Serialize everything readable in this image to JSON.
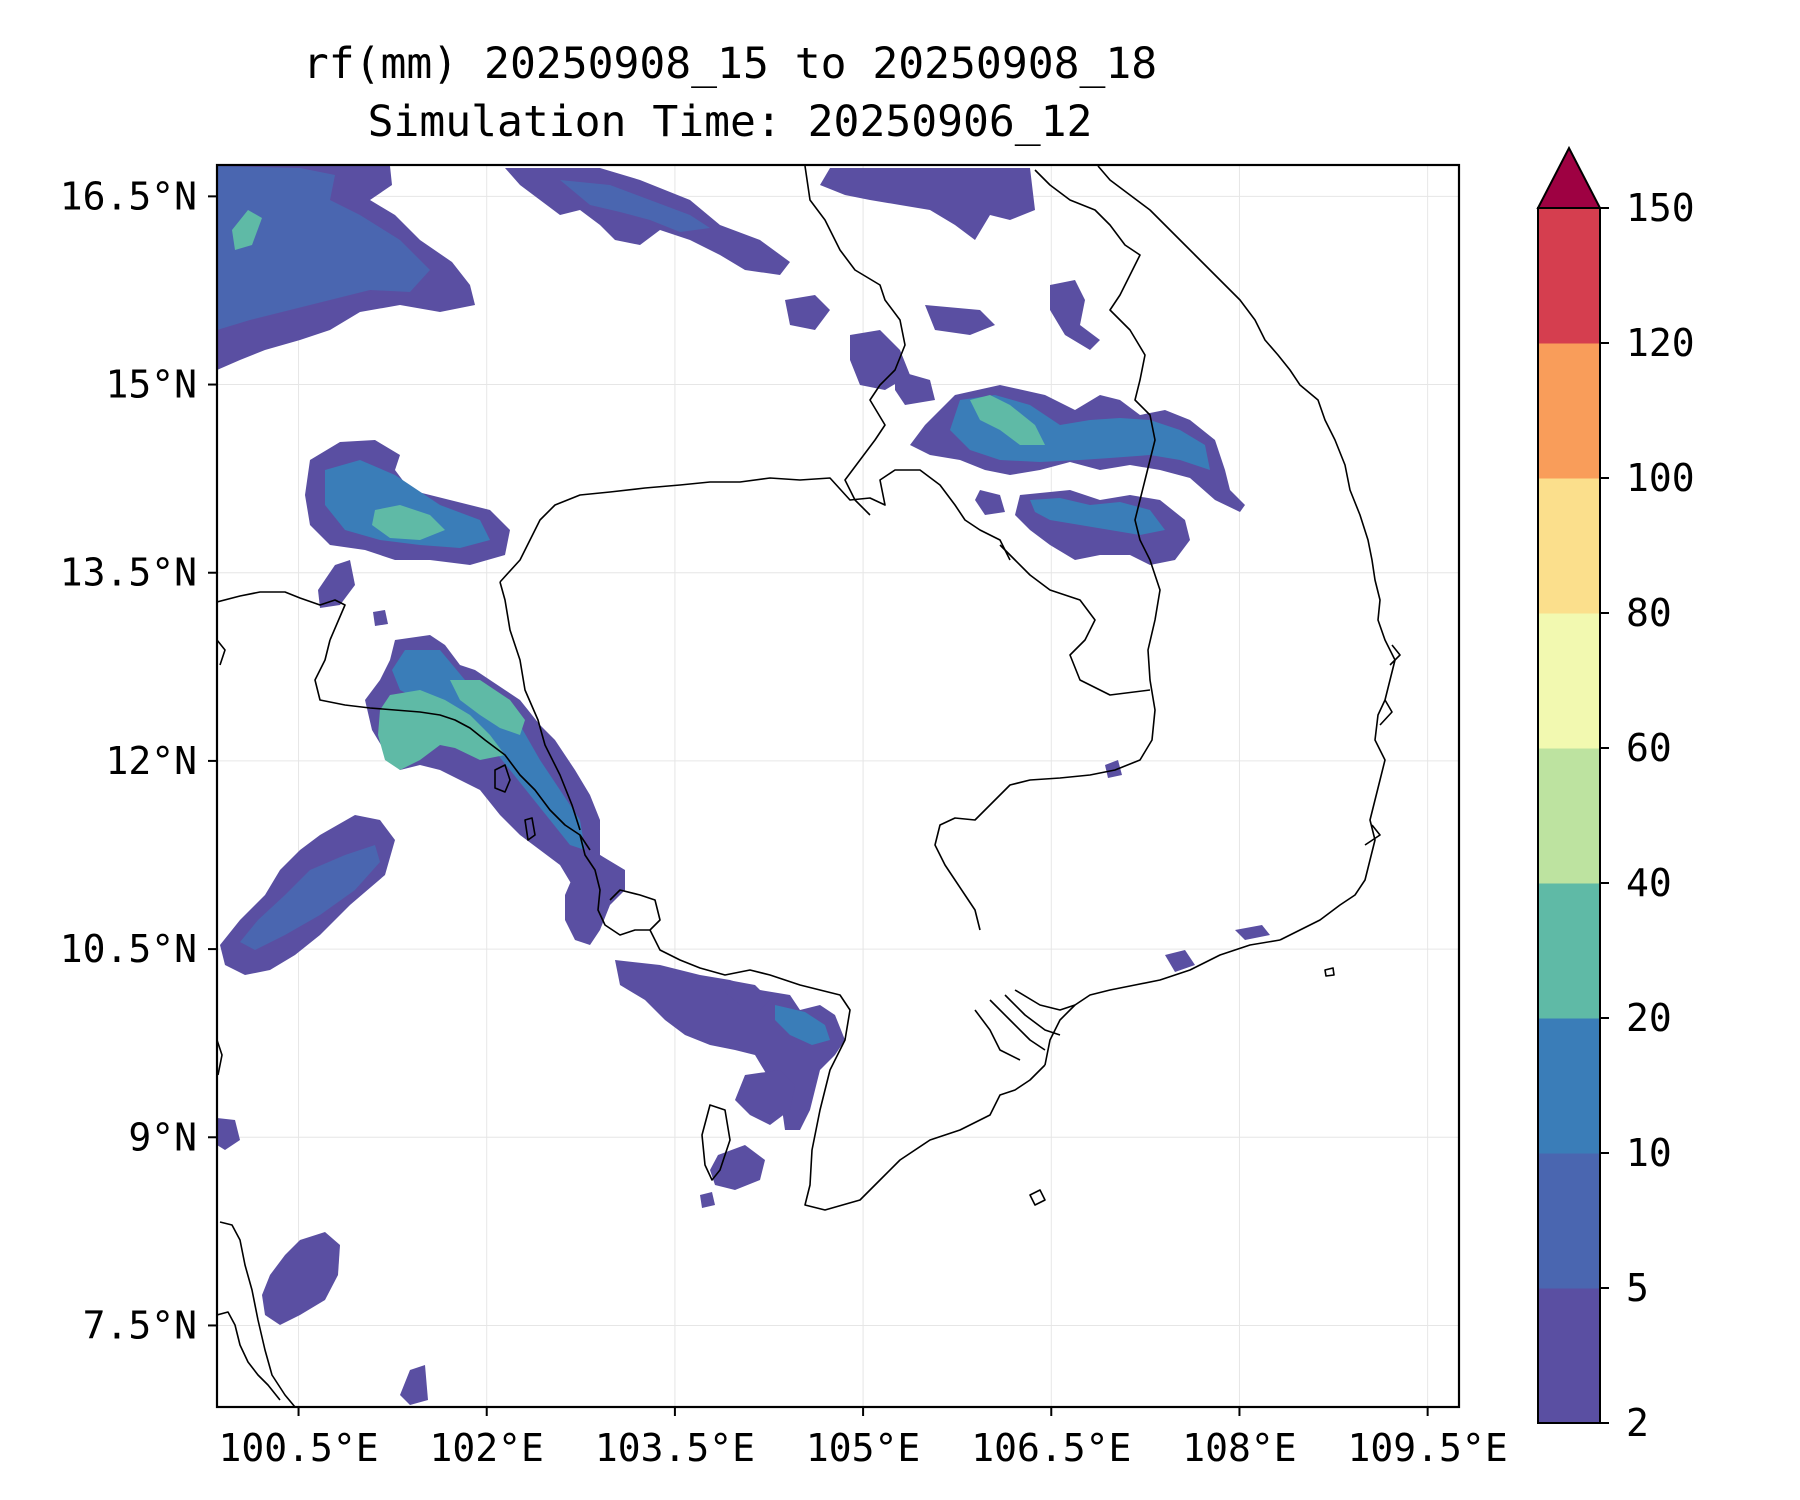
{
  "figure": {
    "title_line1": "rf(mm) 20250908_15 to 20250908_18",
    "title_line2": "Simulation Time: 20250906_12"
  },
  "map": {
    "lon_range": [
      99.85,
      109.75
    ],
    "lat_range": [
      6.85,
      16.75
    ],
    "gridlines": true,
    "lon_ticks": [
      {
        "value": 100.5,
        "label": "100.5°E"
      },
      {
        "value": 102.0,
        "label": "102°E"
      },
      {
        "value": 103.5,
        "label": "103.5°E"
      },
      {
        "value": 105.0,
        "label": "105°E"
      },
      {
        "value": 106.5,
        "label": "106.5°E"
      },
      {
        "value": 108.0,
        "label": "108°E"
      },
      {
        "value": 109.5,
        "label": "109.5°E"
      }
    ],
    "lat_ticks": [
      {
        "value": 16.5,
        "label": "16.5°N"
      },
      {
        "value": 15.0,
        "label": "15°N"
      },
      {
        "value": 13.5,
        "label": "13.5°N"
      },
      {
        "value": 12.0,
        "label": "12°N"
      },
      {
        "value": 10.5,
        "label": "10.5°N"
      },
      {
        "value": 9.0,
        "label": "9°N"
      },
      {
        "value": 7.5,
        "label": "7.5°N"
      }
    ]
  },
  "colorbar": {
    "extend": "max",
    "levels": [
      2,
      5,
      10,
      20,
      40,
      60,
      80,
      100,
      120,
      150
    ],
    "colors": [
      "#5a4fa2",
      "#4a66b0",
      "#3a7db8",
      "#5fbaa6",
      "#bde3a0",
      "#f2f9b0",
      "#fbdf8c",
      "#f99d5a",
      "#d53e4f"
    ],
    "extend_color": "#9e0142",
    "tick_labels": [
      "2",
      "5",
      "10",
      "20",
      "40",
      "60",
      "80",
      "100",
      "120",
      "150"
    ]
  }
}
